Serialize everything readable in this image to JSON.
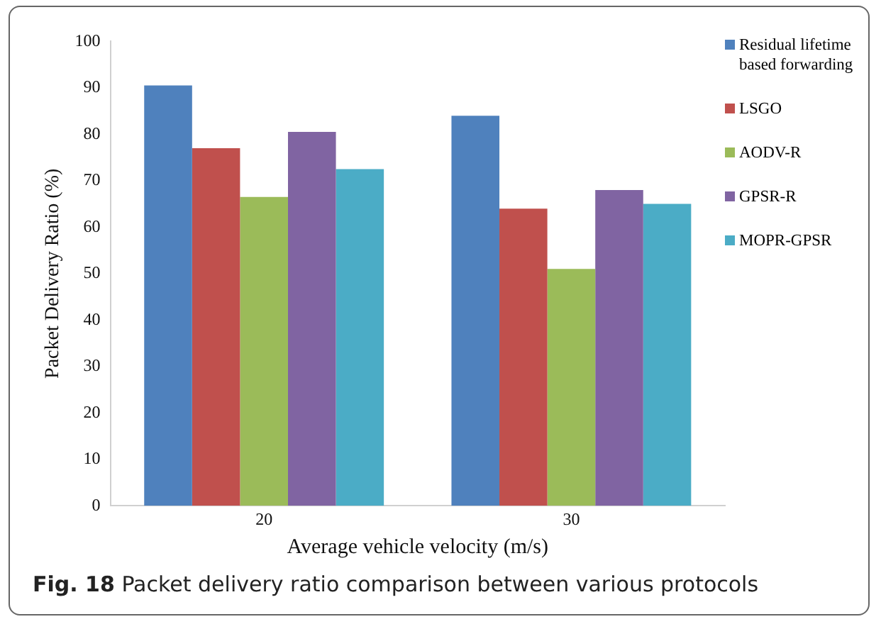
{
  "chart_data": {
    "type": "bar",
    "xlabel": "Average vehicle velocity (m/s)",
    "ylabel": "Packet Delivery Ratio (%)",
    "categories": [
      "20",
      "30"
    ],
    "series": [
      {
        "name": "Residual lifetime based forwarding",
        "color": "#4f81bd",
        "values": [
          90.5,
          84
        ]
      },
      {
        "name": "LSGO",
        "color": "#c0504d",
        "values": [
          77,
          64
        ]
      },
      {
        "name": "AODV-R",
        "color": "#9bbb59",
        "values": [
          66.5,
          51
        ]
      },
      {
        "name": "GPSR-R",
        "color": "#8064a2",
        "values": [
          80.5,
          68
        ]
      },
      {
        "name": "MOPR-GPSR",
        "color": "#4bacc6",
        "values": [
          72.5,
          65
        ]
      }
    ],
    "ylim": [
      0,
      100
    ],
    "yticks": [
      0,
      10,
      20,
      30,
      40,
      50,
      60,
      70,
      80,
      90,
      100
    ],
    "grid": false,
    "legend": "top right",
    "annotations": [
      "Fig. 18 Packet delivery ratio comparison between various protocols"
    ]
  }
}
